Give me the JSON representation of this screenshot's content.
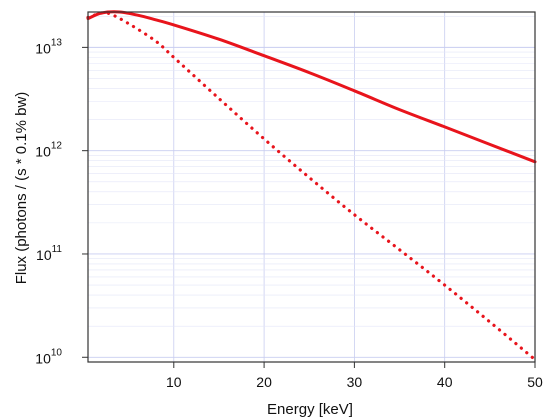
{
  "chart_data": {
    "type": "line",
    "title": "",
    "xlabel": "Energy [keV]",
    "ylabel": "Flux (photons / (s * 0.1% bw)",
    "xlim": [
      0.5,
      50
    ],
    "ylim": [
      9000000000.0,
      22000000000000.0
    ],
    "yscale": "log",
    "grid": true,
    "x_ticks": [
      10,
      20,
      30,
      40,
      50
    ],
    "y_ticks": [
      {
        "value": 10000000000.0,
        "base": "10",
        "exp": "10"
      },
      {
        "value": 100000000000.0,
        "base": "10",
        "exp": "11"
      },
      {
        "value": 1000000000000.0,
        "base": "10",
        "exp": "12"
      },
      {
        "value": 10000000000000.0,
        "base": "10",
        "exp": "13"
      }
    ],
    "series": [
      {
        "style": "solid",
        "color": "#e8141c",
        "x": [
          0.5,
          2,
          4,
          6,
          8,
          10,
          15,
          20,
          25,
          30,
          35,
          40,
          45,
          50
        ],
        "y": [
          19000000000000.0,
          21500000000000.0,
          22000000000000.0,
          20500000000000.0,
          18500000000000.0,
          16500000000000.0,
          12000000000000.0,
          8300000000000.0,
          5700000000000.0,
          3800000000000.0,
          2500000000000.0,
          1700000000000.0,
          1150000000000.0,
          780000000000.0
        ]
      },
      {
        "style": "dotted",
        "color": "#e8141c",
        "x": [
          0.5,
          2,
          3,
          5,
          8,
          10,
          15,
          20,
          25,
          30,
          35,
          40,
          45,
          50
        ],
        "y": [
          19500000000000.0,
          21500000000000.0,
          21000000000000.0,
          17000000000000.0,
          11500000000000.0,
          8000000000000.0,
          3200000000000.0,
          1300000000000.0,
          550000000000.0,
          240000000000.0,
          110000000000.0,
          50000000000.0,
          22000000000.0,
          9500000000.0
        ]
      }
    ]
  }
}
